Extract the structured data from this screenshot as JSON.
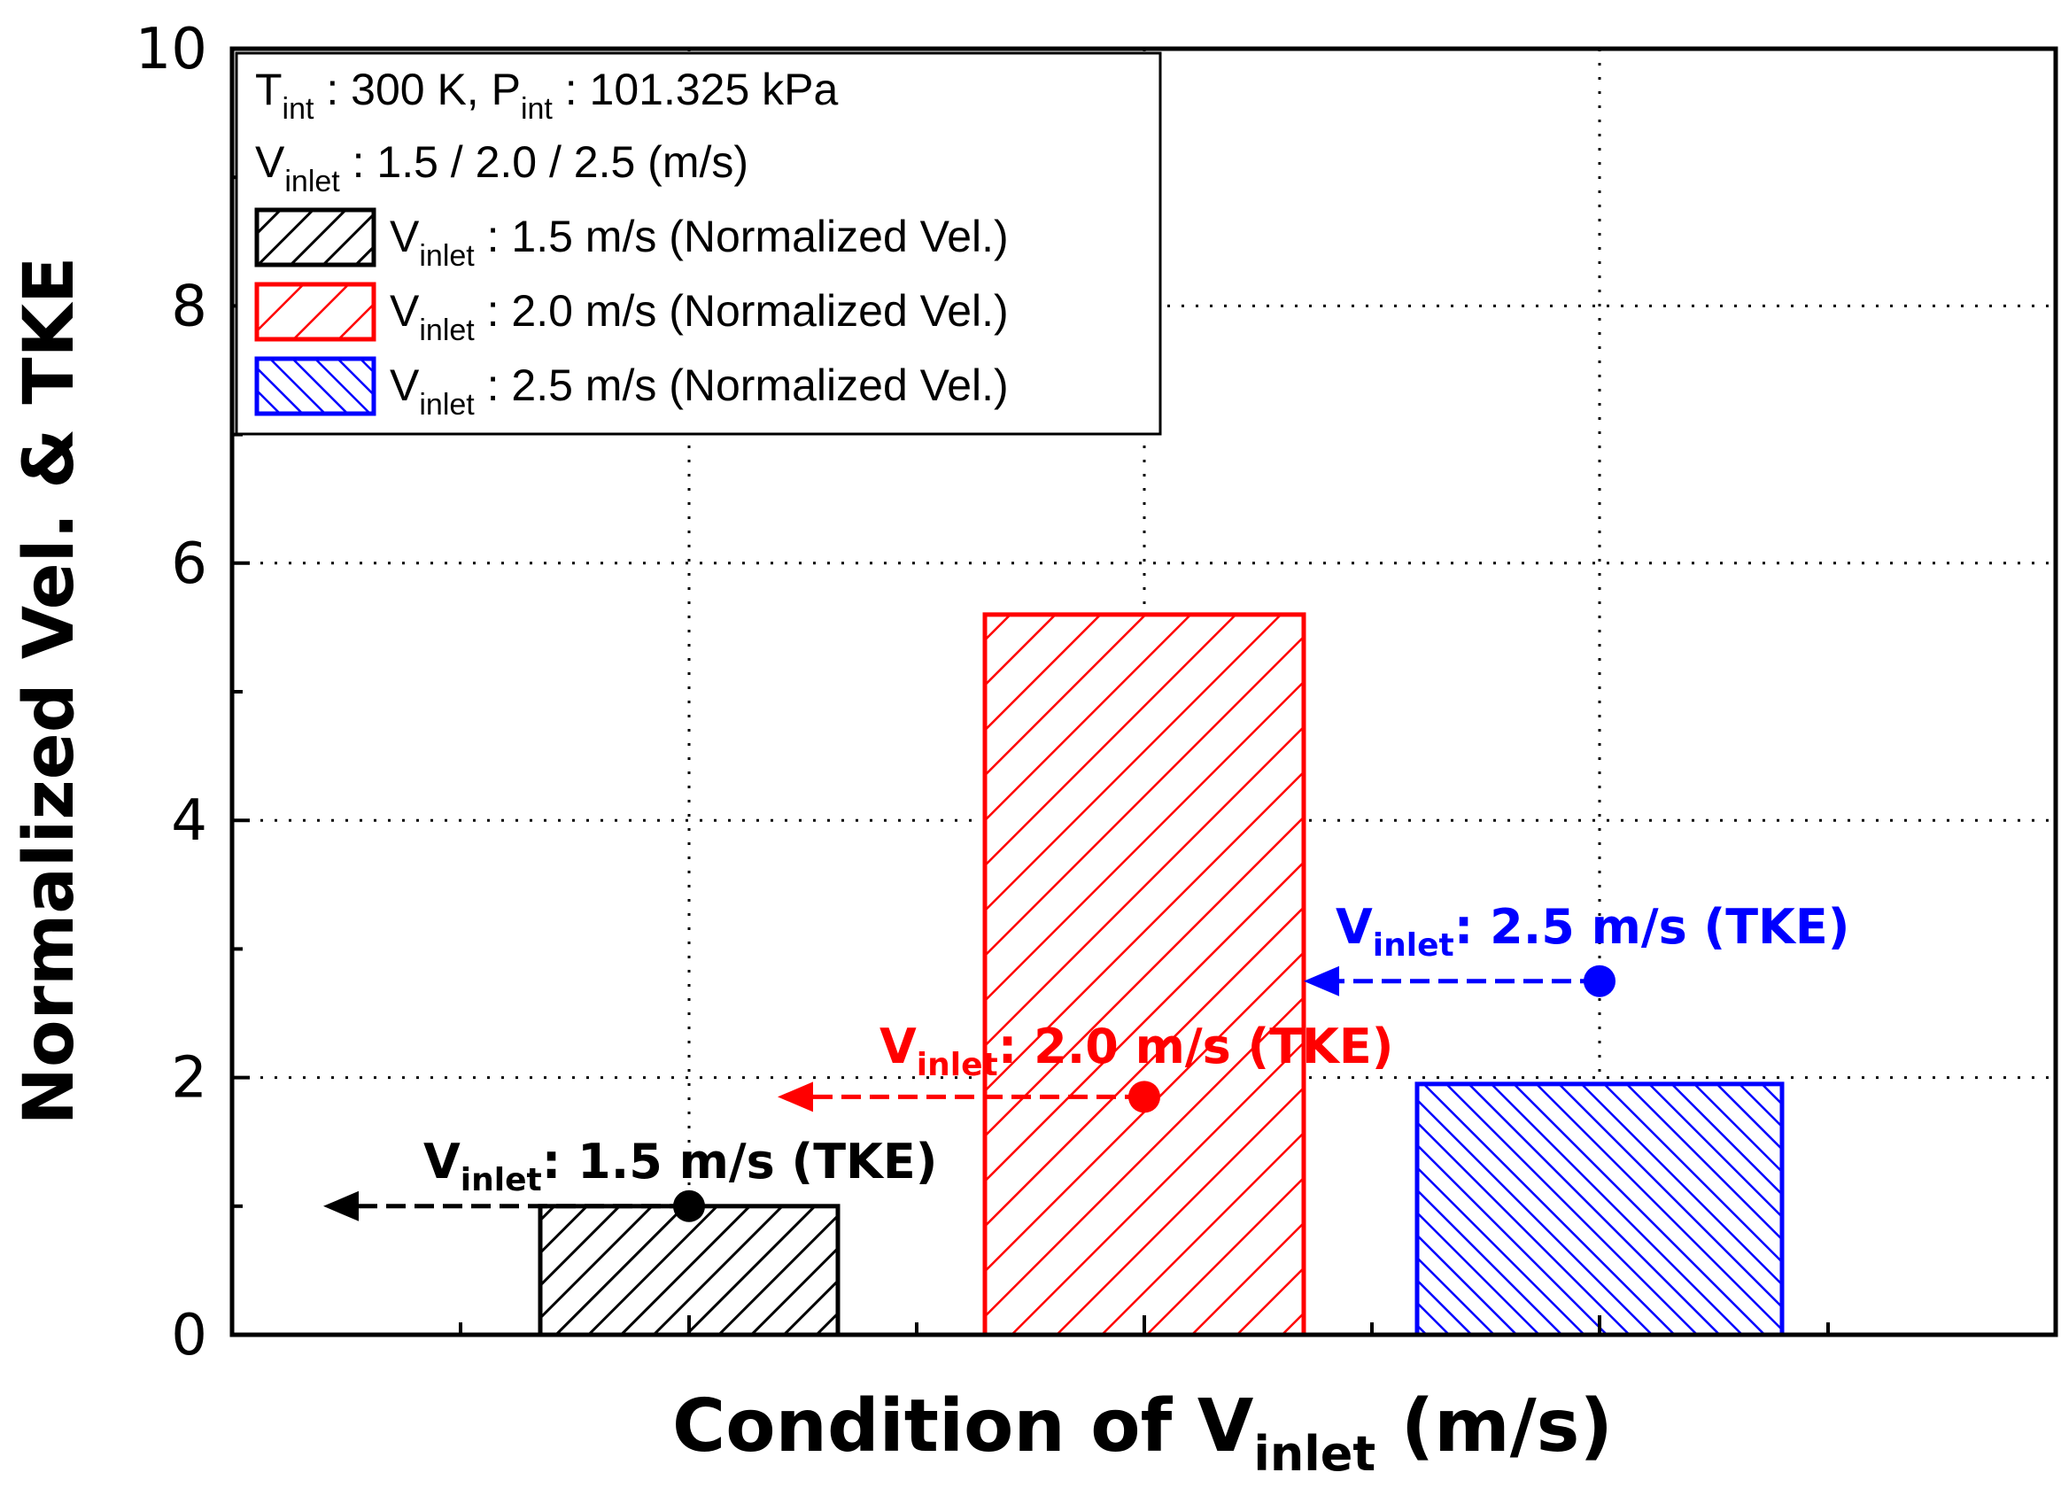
{
  "chart_data": {
    "type": "bar",
    "title": "",
    "xlabel": {
      "main": "Condition of V",
      "sub": "inlet",
      "unit": " (m/s)"
    },
    "ylabel": "Normalized Vel. & TKE",
    "ylim": [
      0,
      10
    ],
    "yticks": [
      "0",
      "2",
      "4",
      "6",
      "8",
      "10"
    ],
    "grid": true,
    "legend_position": "top-left",
    "conditions_text": [
      {
        "parts": [
          {
            "t": "T"
          },
          {
            "t": "int",
            "sub": true
          },
          {
            "t": " : 300 K, P"
          },
          {
            "t": "int",
            "sub": true
          },
          {
            "t": " : 101.325 kPa"
          }
        ]
      },
      {
        "parts": [
          {
            "t": "V"
          },
          {
            "t": "inlet",
            "sub": true
          },
          {
            "t": " : 1.5 / 2.0 / 2.5 (m/s)"
          }
        ]
      }
    ],
    "series": [
      {
        "name": "Vinlet : 1.5 m/s (Normalized Vel.)",
        "legend_main": "V",
        "legend_sub": "inlet",
        "legend_rest": " : 1.5 m/s (Normalized Vel.)",
        "color": "#000000",
        "hatch": "forward",
        "value": 1.0,
        "tke": 1.0,
        "tke_label_main": "V",
        "tke_label_sub": "inlet",
        "tke_label_rest": ": 1.5 m/s (TKE)"
      },
      {
        "name": "Vinlet : 2.0 m/s (Normalized Vel.)",
        "legend_main": "V",
        "legend_sub": "inlet",
        "legend_rest": " : 2.0 m/s (Normalized Vel.)",
        "color": "#ff0000",
        "hatch": "forward",
        "value": 5.6,
        "tke": 1.85,
        "tke_label_main": "V",
        "tke_label_sub": "inlet",
        "tke_label_rest": ": 2.0 m/s (TKE)"
      },
      {
        "name": "Vinlet : 2.5 m/s (Normalized Vel.)",
        "legend_main": "V",
        "legend_sub": "inlet",
        "legend_rest": " : 2.5 m/s (Normalized Vel.)",
        "color": "#0000ff",
        "hatch": "backward",
        "value": 1.95,
        "tke": 2.75,
        "tke_label_main": "V",
        "tke_label_sub": "inlet",
        "tke_label_rest": ": 2.5 m/s (TKE)"
      }
    ]
  }
}
